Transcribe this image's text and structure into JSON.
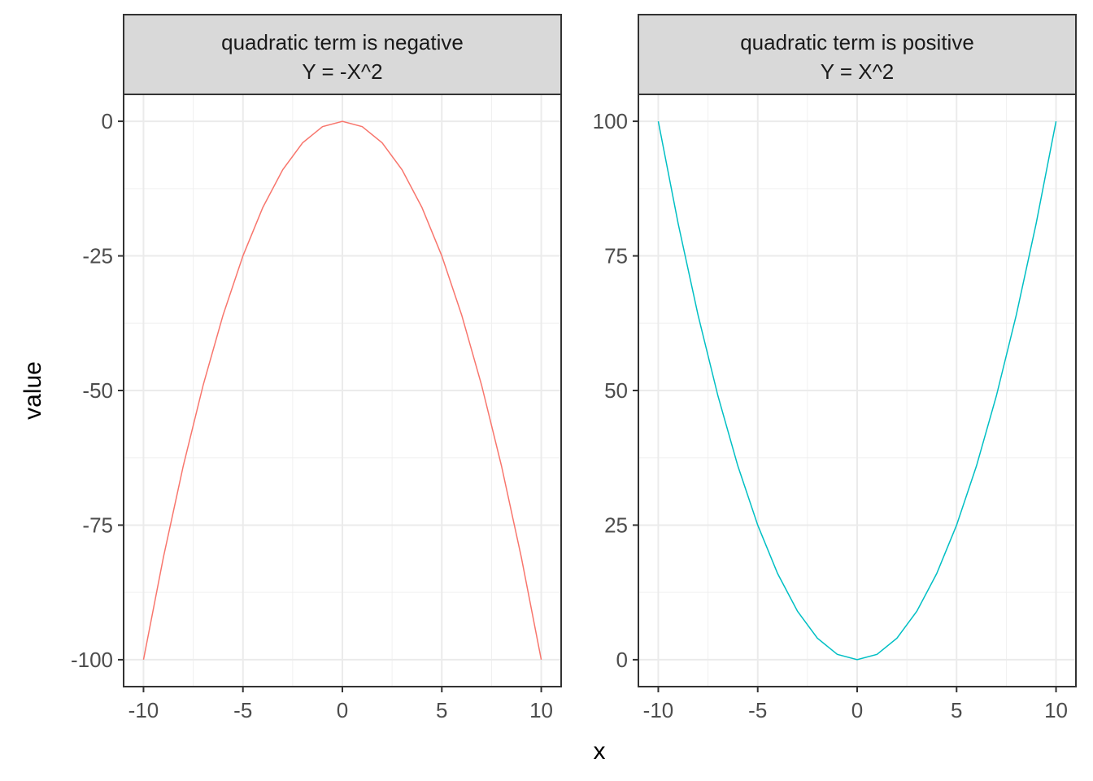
{
  "chart_data": {
    "type": "line",
    "xlabel": "x",
    "ylabel": "value",
    "grid": true,
    "legend": "none",
    "panels": [
      {
        "strip_line1": "quadratic term is negative",
        "strip_line2": "Y = -X^2",
        "color": "#F8766D",
        "xlim": [
          -11,
          11
        ],
        "ylim": [
          -105,
          5
        ],
        "x_ticks": [
          -10,
          -5,
          0,
          5,
          10
        ],
        "x_tick_labels": [
          "-10",
          "-5",
          "0",
          "5",
          "10"
        ],
        "y_ticks": [
          0,
          -25,
          -50,
          -75,
          -100
        ],
        "y_tick_labels": [
          "0",
          "-25",
          "-50",
          "-75",
          "-100"
        ],
        "series": [
          {
            "x": [
              -10,
              -9,
              -8,
              -7,
              -6,
              -5,
              -4,
              -3,
              -2,
              -1,
              0,
              1,
              2,
              3,
              4,
              5,
              6,
              7,
              8,
              9,
              10
            ],
            "values": [
              -100,
              -81,
              -64,
              -49,
              -36,
              -25,
              -16,
              -9,
              -4,
              -1,
              0,
              -1,
              -4,
              -9,
              -16,
              -25,
              -36,
              -49,
              -64,
              -81,
              -100
            ]
          }
        ]
      },
      {
        "strip_line1": "quadratic term is positive",
        "strip_line2": "Y = X^2",
        "color": "#00BFC4",
        "xlim": [
          -11,
          11
        ],
        "ylim": [
          -5,
          105
        ],
        "x_ticks": [
          -10,
          -5,
          0,
          5,
          10
        ],
        "x_tick_labels": [
          "-10",
          "-5",
          "0",
          "5",
          "10"
        ],
        "y_ticks": [
          100,
          75,
          50,
          25,
          0
        ],
        "y_tick_labels": [
          "100",
          "75",
          "50",
          "25",
          "0"
        ],
        "series": [
          {
            "x": [
              -10,
              -9,
              -8,
              -7,
              -6,
              -5,
              -4,
              -3,
              -2,
              -1,
              0,
              1,
              2,
              3,
              4,
              5,
              6,
              7,
              8,
              9,
              10
            ],
            "values": [
              100,
              81,
              64,
              49,
              36,
              25,
              16,
              9,
              4,
              1,
              0,
              1,
              4,
              9,
              16,
              25,
              36,
              49,
              64,
              81,
              100
            ]
          }
        ]
      }
    ]
  }
}
